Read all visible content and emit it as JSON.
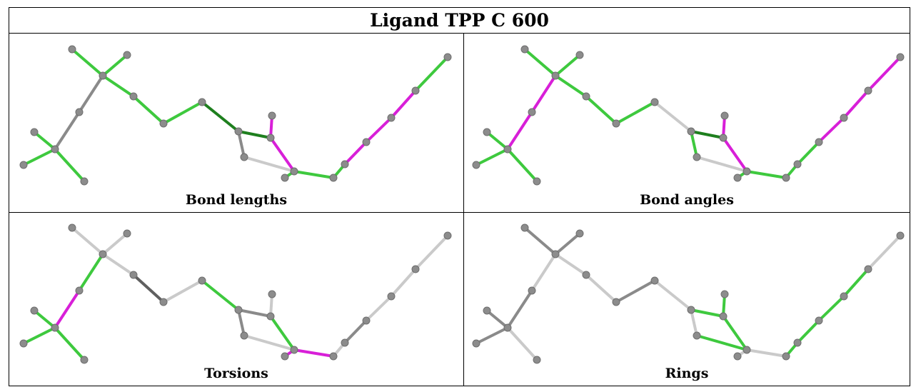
{
  "title": "Ligand TPP C 600",
  "panels": [
    {
      "caption": "Bond lengths",
      "bonds": [
        "g",
        "g",
        "g",
        "g",
        "g",
        "lg",
        "lg",
        "g",
        "g",
        "g",
        "dg",
        "gr",
        "lgr",
        "dg",
        "m",
        "m",
        "g",
        "g",
        "g",
        "m",
        "m",
        "m",
        "g"
      ]
    },
    {
      "caption": "Bond angles",
      "bonds": [
        "g",
        "g",
        "g",
        "g",
        "g",
        "m",
        "m",
        "g",
        "g",
        "g",
        "lgr",
        "g",
        "lgr",
        "dg",
        "m",
        "m",
        "g",
        "g",
        "g",
        "g",
        "m",
        "m",
        "m"
      ]
    },
    {
      "caption": "Torsions",
      "bonds": [
        "lgr",
        "lgr",
        "lgr",
        "dgr",
        "lgr",
        "g",
        "m",
        "g",
        "g",
        "g",
        "g",
        "gr",
        "lgr",
        "gr",
        "lgr",
        "g",
        "m",
        "m",
        "lgr",
        "gr",
        "lgr",
        "lgr",
        "lgr"
      ]
    },
    {
      "caption": "Rings",
      "bonds": [
        "gr",
        "gr",
        "lgr",
        "lgr",
        "gr",
        "lgr",
        "gr",
        "gr",
        "gr",
        "lgr",
        "lgr",
        "lgr",
        "g",
        "g",
        "g",
        "g",
        "lgr",
        "lgr",
        "g",
        "g",
        "g",
        "g",
        "lgr"
      ]
    }
  ],
  "colors": {
    "g": "#3ec93e",
    "dg": "#1e7f1e",
    "m": "#d81fd8",
    "gr": "#8a8a8a",
    "dgr": "#5f5f5f",
    "lgr": "#cacaca",
    "atom": "#8c8c8c"
  }
}
